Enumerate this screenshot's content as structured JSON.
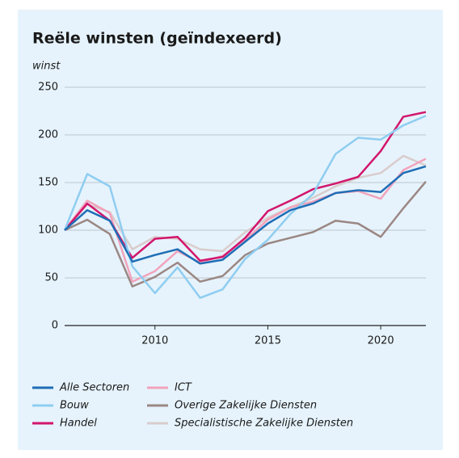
{
  "chart_data": {
    "type": "line",
    "title": "Reële winsten (geïndexeerd)",
    "y_label": "winst",
    "x": [
      2006,
      2007,
      2008,
      2009,
      2010,
      2011,
      2012,
      2013,
      2014,
      2015,
      2016,
      2017,
      2018,
      2019,
      2020,
      2021,
      2022
    ],
    "xlim": [
      2006,
      2022
    ],
    "xticks": [
      2010,
      2015,
      2020
    ],
    "ylim": [
      0,
      250
    ],
    "yticks": [
      0,
      50,
      100,
      150,
      200,
      250
    ],
    "grid": true,
    "series": [
      {
        "name": "Alle Sectoren",
        "color": "#1f6db5",
        "values": [
          100,
          121,
          110,
          67,
          74,
          80,
          65,
          69,
          88,
          107,
          121,
          128,
          139,
          142,
          140,
          160,
          167
        ]
      },
      {
        "name": "Bouw",
        "color": "#8fcdf1",
        "values": [
          100,
          159,
          146,
          62,
          34,
          61,
          29,
          38,
          70,
          90,
          117,
          138,
          180,
          197,
          195,
          210,
          220
        ]
      },
      {
        "name": "Handel",
        "color": "#d3166d",
        "values": [
          100,
          128,
          110,
          71,
          91,
          93,
          68,
          72,
          92,
          120,
          131,
          143,
          149,
          156,
          183,
          219,
          224
        ]
      },
      {
        "name": "ICT",
        "color": "#f2a3bc",
        "values": [
          100,
          131,
          118,
          46,
          57,
          78,
          66,
          73,
          90,
          111,
          124,
          130,
          139,
          141,
          133,
          163,
          175
        ]
      },
      {
        "name": "Overige Zakelijke Diensten",
        "color": "#9b8784",
        "values": [
          100,
          111,
          96,
          41,
          51,
          66,
          46,
          52,
          74,
          86,
          92,
          98,
          110,
          107,
          93,
          123,
          151
        ]
      },
      {
        "name": "Specialistische Zakelijke Diensten",
        "color": "#d9cccc",
        "values": [
          100,
          127,
          119,
          80,
          93,
          91,
          80,
          78,
          98,
          113,
          124,
          134,
          146,
          155,
          160,
          178,
          168
        ]
      }
    ]
  }
}
